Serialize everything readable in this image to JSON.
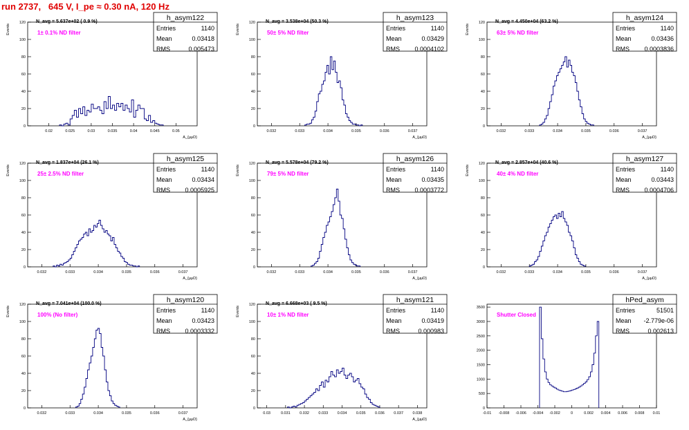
{
  "title": "run 2737,   645 V, I_pe ≈ 0.30 nA, 120 Hz",
  "colors": {
    "title": "#e00000",
    "histogram": "#000080",
    "annotation": "#ff00ff",
    "axes": "#000000"
  },
  "stats_labels": {
    "entries": "Entries",
    "mean": "Mean",
    "rms": "RMS"
  },
  "chart_data": [
    {
      "type": "bar",
      "name": "h_asym122",
      "ylabel": "Events",
      "xlabel": "A_{μμD}",
      "xlim": [
        0.015,
        0.055
      ],
      "ylim": [
        0,
        120
      ],
      "xticks": [
        0.02,
        0.025,
        0.03,
        0.035,
        0.04,
        0.045,
        0.05
      ],
      "xtick_labels": [
        "0.02",
        "0.025",
        "0.03",
        "0.035",
        "0.04",
        "0.045",
        "0.05"
      ],
      "yticks": [
        0,
        20,
        40,
        60,
        80,
        100,
        120
      ],
      "navg": "N_avg = 5.637e+02 ( 0.9 %)",
      "filter": "1± 0.1% ND filter",
      "stats": {
        "entries": "1140",
        "mean": "0.03418",
        "rms": "0.005473"
      },
      "bin_start": 0.0225,
      "bin_width": 0.0005,
      "values": [
        1,
        0,
        2,
        3,
        1,
        8,
        12,
        18,
        10,
        20,
        14,
        22,
        12,
        18,
        16,
        25,
        20,
        20,
        22,
        18,
        14,
        28,
        20,
        34,
        20,
        24,
        18,
        26,
        22,
        26,
        18,
        24,
        20,
        16,
        30,
        10,
        18,
        24,
        20,
        20,
        8,
        6,
        12,
        4,
        6,
        3,
        2,
        1,
        1
      ]
    },
    {
      "type": "bar",
      "name": "h_asym123",
      "ylabel": "Events",
      "xlabel": "A_{μμD}",
      "xlim": [
        0.0315,
        0.0375
      ],
      "ylim": [
        0,
        120
      ],
      "xticks": [
        0.032,
        0.033,
        0.034,
        0.035,
        0.036,
        0.037
      ],
      "xtick_labels": [
        "0.032",
        "0.033",
        "0.034",
        "0.035",
        "0.036",
        "0.037"
      ],
      "yticks": [
        0,
        20,
        40,
        60,
        80,
        100,
        120
      ],
      "navg": "N_avg = 3.538e+04 (50.3 %)",
      "filter": "50± 5% ND filter",
      "stats": {
        "entries": "1140",
        "mean": "0.03429",
        "rms": "0.0004102"
      },
      "bin_start": 0.03318,
      "bin_width": 6e-05,
      "values": [
        1,
        2,
        2,
        3,
        7,
        10,
        17,
        28,
        37,
        40,
        48,
        52,
        62,
        70,
        60,
        80,
        65,
        75,
        62,
        50,
        52,
        44,
        30,
        24,
        14,
        10,
        6,
        4,
        2,
        2,
        1,
        1,
        0,
        1
      ]
    },
    {
      "type": "bar",
      "name": "h_asym124",
      "ylabel": "Events",
      "xlabel": "A_{μμD}",
      "xlim": [
        0.0315,
        0.0375
      ],
      "ylim": [
        0,
        120
      ],
      "xticks": [
        0.032,
        0.033,
        0.034,
        0.035,
        0.036,
        0.037
      ],
      "xtick_labels": [
        "0.032",
        "0.033",
        "0.034",
        "0.035",
        "0.036",
        "0.037"
      ],
      "yticks": [
        0,
        20,
        40,
        60,
        80,
        100,
        120
      ],
      "navg": "N_avg = 4.450e+04 (63.2 %)",
      "filter": "63± 5% ND filter",
      "stats": {
        "entries": "1140",
        "mean": "0.03436",
        "rms": "0.0003836"
      },
      "bin_start": 0.03336,
      "bin_width": 6e-05,
      "values": [
        1,
        2,
        4,
        8,
        12,
        20,
        28,
        36,
        46,
        52,
        58,
        62,
        66,
        70,
        74,
        80,
        68,
        76,
        70,
        62,
        58,
        50,
        40,
        30,
        22,
        14,
        8,
        5,
        3,
        2,
        1,
        1
      ]
    },
    {
      "type": "bar",
      "name": "h_asym125",
      "ylabel": "Events",
      "xlabel": "A_{μμD}",
      "xlim": [
        0.0315,
        0.0375
      ],
      "ylim": [
        0,
        120
      ],
      "xticks": [
        0.032,
        0.033,
        0.034,
        0.035,
        0.036,
        0.037
      ],
      "xtick_labels": [
        "0.032",
        "0.033",
        "0.034",
        "0.035",
        "0.036",
        "0.037"
      ],
      "yticks": [
        0,
        20,
        40,
        60,
        80,
        100,
        120
      ],
      "navg": "N_avg = 1.837e+04 (26.1 %)",
      "filter": "25± 2.5% ND filter",
      "stats": {
        "entries": "1140",
        "mean": "0.03434",
        "rms": "0.0005925"
      },
      "bin_start": 0.0324,
      "bin_width": 6e-05,
      "values": [
        1,
        0,
        2,
        1,
        3,
        2,
        4,
        5,
        6,
        8,
        10,
        14,
        18,
        22,
        26,
        30,
        32,
        34,
        38,
        40,
        36,
        44,
        40,
        42,
        48,
        46,
        50,
        54,
        48,
        44,
        40,
        42,
        38,
        36,
        30,
        34,
        26,
        22,
        18,
        16,
        12,
        10,
        6,
        5,
        3,
        2,
        2,
        1,
        1,
        0,
        1
      ]
    },
    {
      "type": "bar",
      "name": "h_asym126",
      "ylabel": "Events",
      "xlabel": "A_{μμD}",
      "xlim": [
        0.0315,
        0.0375
      ],
      "ylim": [
        0,
        120
      ],
      "xticks": [
        0.032,
        0.033,
        0.034,
        0.035,
        0.036,
        0.037
      ],
      "xtick_labels": [
        "0.032",
        "0.033",
        "0.034",
        "0.035",
        "0.036",
        "0.037"
      ],
      "yticks": [
        0,
        20,
        40,
        60,
        80,
        100,
        120
      ],
      "navg": "N_avg = 5.578e+04 (79.2 %)",
      "filter": "79± 5% ND filter",
      "stats": {
        "entries": "1140",
        "mean": "0.03435",
        "rms": "0.0003772"
      },
      "bin_start": 0.0334,
      "bin_width": 6e-05,
      "values": [
        1,
        2,
        4,
        6,
        10,
        18,
        26,
        34,
        40,
        48,
        52,
        58,
        64,
        72,
        80,
        90,
        76,
        60,
        56,
        44,
        32,
        22,
        14,
        8,
        5,
        3,
        2,
        1,
        1
      ]
    },
    {
      "type": "bar",
      "name": "h_asym127",
      "ylabel": "Events",
      "xlabel": "A_{μμD}",
      "xlim": [
        0.0315,
        0.0375
      ],
      "ylim": [
        0,
        120
      ],
      "xticks": [
        0.032,
        0.033,
        0.034,
        0.035,
        0.036,
        0.037
      ],
      "xtick_labels": [
        "0.032",
        "0.033",
        "0.034",
        "0.035",
        "0.036",
        "0.037"
      ],
      "yticks": [
        0,
        20,
        40,
        60,
        80,
        100,
        120
      ],
      "navg": "N_avg = 2.857e+04 (40.6 %)",
      "filter": "40± 4% ND filter",
      "stats": {
        "entries": "1140",
        "mean": "0.03443",
        "rms": "0.0004706"
      },
      "bin_start": 0.033,
      "bin_width": 6e-05,
      "values": [
        1,
        2,
        3,
        6,
        8,
        12,
        18,
        24,
        30,
        36,
        40,
        46,
        50,
        54,
        58,
        60,
        56,
        62,
        58,
        64,
        56,
        52,
        48,
        40,
        36,
        30,
        22,
        14,
        10,
        6,
        3,
        2,
        1
      ]
    },
    {
      "type": "bar",
      "name": "h_asym120",
      "ylabel": "Events",
      "xlabel": "A_{μμD}",
      "xlim": [
        0.0315,
        0.0375
      ],
      "ylim": [
        0,
        120
      ],
      "xticks": [
        0.032,
        0.033,
        0.034,
        0.035,
        0.036,
        0.037
      ],
      "xtick_labels": [
        "0.032",
        "0.033",
        "0.034",
        "0.035",
        "0.036",
        "0.037"
      ],
      "yticks": [
        0,
        20,
        40,
        60,
        80,
        100,
        120
      ],
      "navg": "N_avg = 7.041e+04 (100.0 %)",
      "filter": "100% (No filter)",
      "stats": {
        "entries": "1140",
        "mean": "0.03423",
        "rms": "0.0003332"
      },
      "bin_start": 0.0332,
      "bin_width": 6e-05,
      "values": [
        1,
        2,
        5,
        10,
        16,
        24,
        34,
        44,
        52,
        60,
        70,
        80,
        90,
        92,
        86,
        70,
        60,
        44,
        30,
        20,
        14,
        8,
        5,
        3,
        2,
        1
      ]
    },
    {
      "type": "bar",
      "name": "h_asym121",
      "ylabel": "Events",
      "xlabel": "A_{μμD}",
      "xlim": [
        0.0295,
        0.0385
      ],
      "ylim": [
        0,
        120
      ],
      "xticks": [
        0.03,
        0.031,
        0.032,
        0.033,
        0.034,
        0.035,
        0.036,
        0.037,
        0.038
      ],
      "xtick_labels": [
        "0.03",
        "0.031",
        "0.032",
        "0.033",
        "0.034",
        "0.035",
        "0.036",
        "0.037",
        "0.038"
      ],
      "yticks": [
        0,
        20,
        40,
        60,
        80,
        100,
        120
      ],
      "navg": "N_avg = 6.668e+03 ( 9.5 %)",
      "filter": "10± 1% ND filter",
      "stats": {
        "entries": "1140",
        "mean": "0.03419",
        "rms": "0.000983"
      },
      "bin_start": 0.0311,
      "bin_width": 0.0001,
      "values": [
        1,
        0,
        1,
        2,
        1,
        3,
        4,
        5,
        6,
        8,
        10,
        12,
        14,
        16,
        18,
        22,
        20,
        26,
        30,
        24,
        32,
        30,
        36,
        42,
        38,
        36,
        44,
        40,
        42,
        46,
        38,
        34,
        38,
        40,
        36,
        30,
        32,
        34,
        28,
        24,
        22,
        16,
        12,
        10,
        6,
        4,
        3,
        2,
        1
      ]
    },
    {
      "type": "bar",
      "name": "hPed_asym",
      "ylabel": "",
      "xlabel": "",
      "xlim": [
        -0.01,
        0.01
      ],
      "ylim": [
        0,
        3600
      ],
      "xticks": [
        -0.01,
        -0.008,
        -0.006,
        -0.004,
        -0.002,
        0,
        0.002,
        0.004,
        0.006,
        0.008,
        0.01
      ],
      "xtick_labels": [
        "-0.01",
        "-0.008",
        "-0.006",
        "-0.004",
        "-0.002",
        "0",
        "0.002",
        "0.004",
        "0.006",
        "0.008",
        "0.01"
      ],
      "yticks": [
        0,
        500,
        1000,
        1500,
        2000,
        2500,
        3000,
        3500
      ],
      "navg": "",
      "filter": "Shutter Closed",
      "stats": {
        "entries": "51501",
        "mean": "-2.779e-06",
        "rms": "0.002613"
      },
      "bin_start": -0.0038,
      "bin_width": 0.0002,
      "values": [
        3500,
        2400,
        1700,
        1250,
        1000,
        880,
        800,
        760,
        720,
        690,
        650,
        620,
        600,
        580,
        560,
        560,
        570,
        580,
        600,
        620,
        640,
        660,
        690,
        720,
        760,
        800,
        850,
        900,
        980,
        1080,
        1250,
        1500,
        1900,
        2500,
        3000
      ]
    }
  ]
}
